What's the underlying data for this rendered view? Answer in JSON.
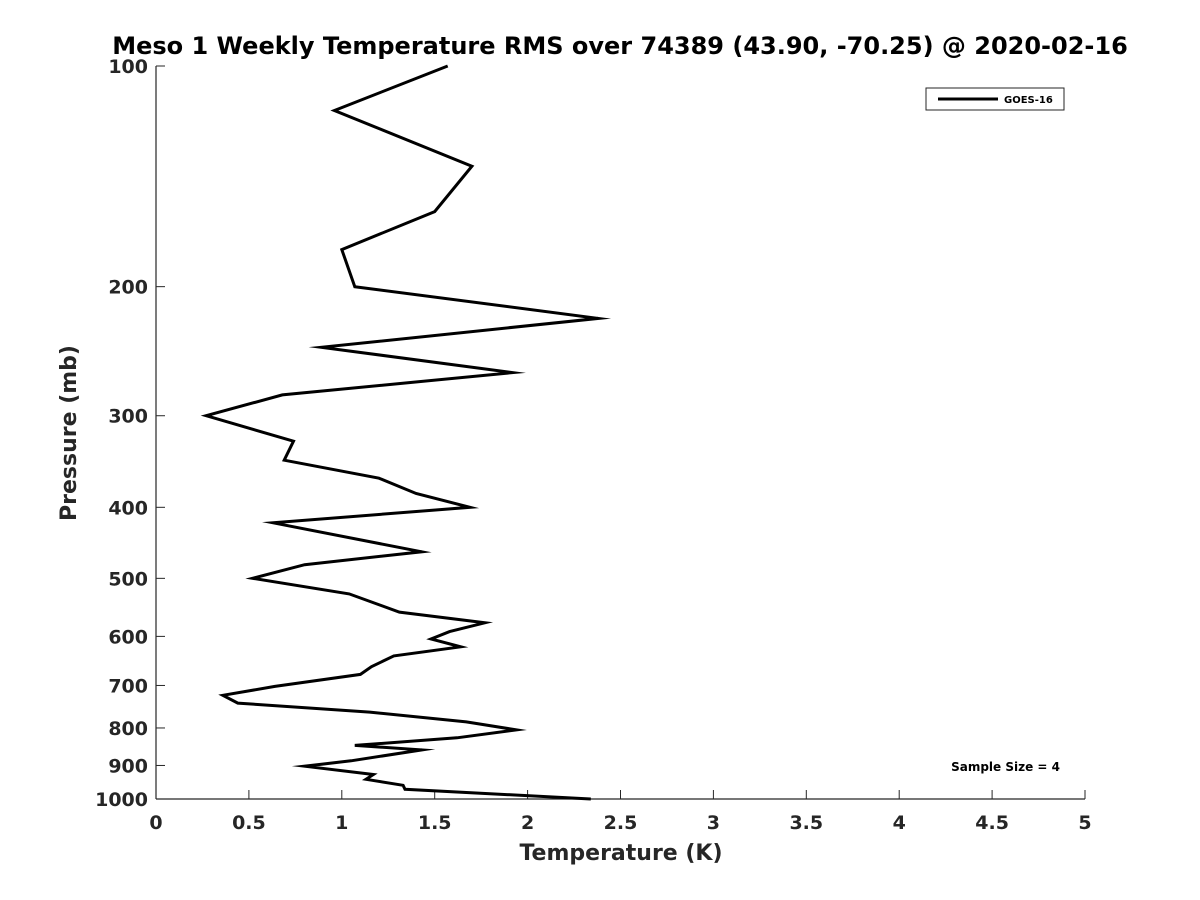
{
  "chart_data": {
    "type": "line",
    "title": "Meso 1 Weekly Temperature RMS over 74389 (43.90, -70.25) @ 2020-02-16",
    "xlabel": "Temperature (K)",
    "ylabel": "Pressure (mb)",
    "xlim": [
      0,
      5
    ],
    "ylim": [
      100,
      1000
    ],
    "y_scale": "log",
    "y_reversed": true,
    "x_ticks": [
      "0",
      "0.5",
      "1",
      "1.5",
      "2",
      "2.5",
      "3",
      "3.5",
      "4",
      "4.5",
      "5"
    ],
    "y_ticks": [
      "100",
      "200",
      "300",
      "400",
      "500",
      "600",
      "700",
      "800",
      "900",
      "1000"
    ],
    "grid": false,
    "legend_position": "top-right",
    "annotation": "Sample Size = 4",
    "series": [
      {
        "name": "GOES-16",
        "color": "#000000",
        "points": [
          [
            1.57,
            100
          ],
          [
            0.96,
            115
          ],
          [
            1.7,
            137
          ],
          [
            1.5,
            158
          ],
          [
            1.0,
            178
          ],
          [
            1.07,
            200
          ],
          [
            2.38,
            221
          ],
          [
            0.89,
            242
          ],
          [
            1.92,
            262
          ],
          [
            0.68,
            281
          ],
          [
            0.27,
            300
          ],
          [
            0.74,
            325
          ],
          [
            0.69,
            345
          ],
          [
            1.2,
            365
          ],
          [
            1.4,
            383
          ],
          [
            1.69,
            400
          ],
          [
            0.63,
            420
          ],
          [
            1.43,
            460
          ],
          [
            0.8,
            479
          ],
          [
            0.52,
            500
          ],
          [
            1.04,
            525
          ],
          [
            1.31,
            556
          ],
          [
            1.77,
            575
          ],
          [
            1.58,
            591
          ],
          [
            1.48,
            605
          ],
          [
            1.64,
            620
          ],
          [
            1.28,
            638
          ],
          [
            1.16,
            660
          ],
          [
            1.1,
            676
          ],
          [
            0.64,
            702
          ],
          [
            0.36,
            722
          ],
          [
            0.44,
            740
          ],
          [
            1.15,
            761
          ],
          [
            1.67,
            785
          ],
          [
            1.94,
            805
          ],
          [
            1.62,
            825
          ],
          [
            1.07,
            845
          ],
          [
            1.43,
            857
          ],
          [
            1.05,
            887
          ],
          [
            0.8,
            902
          ],
          [
            1.17,
            926
          ],
          [
            1.13,
            940
          ],
          [
            1.33,
            958
          ],
          [
            1.34,
            970
          ],
          [
            2.34,
            1000
          ]
        ]
      }
    ]
  }
}
